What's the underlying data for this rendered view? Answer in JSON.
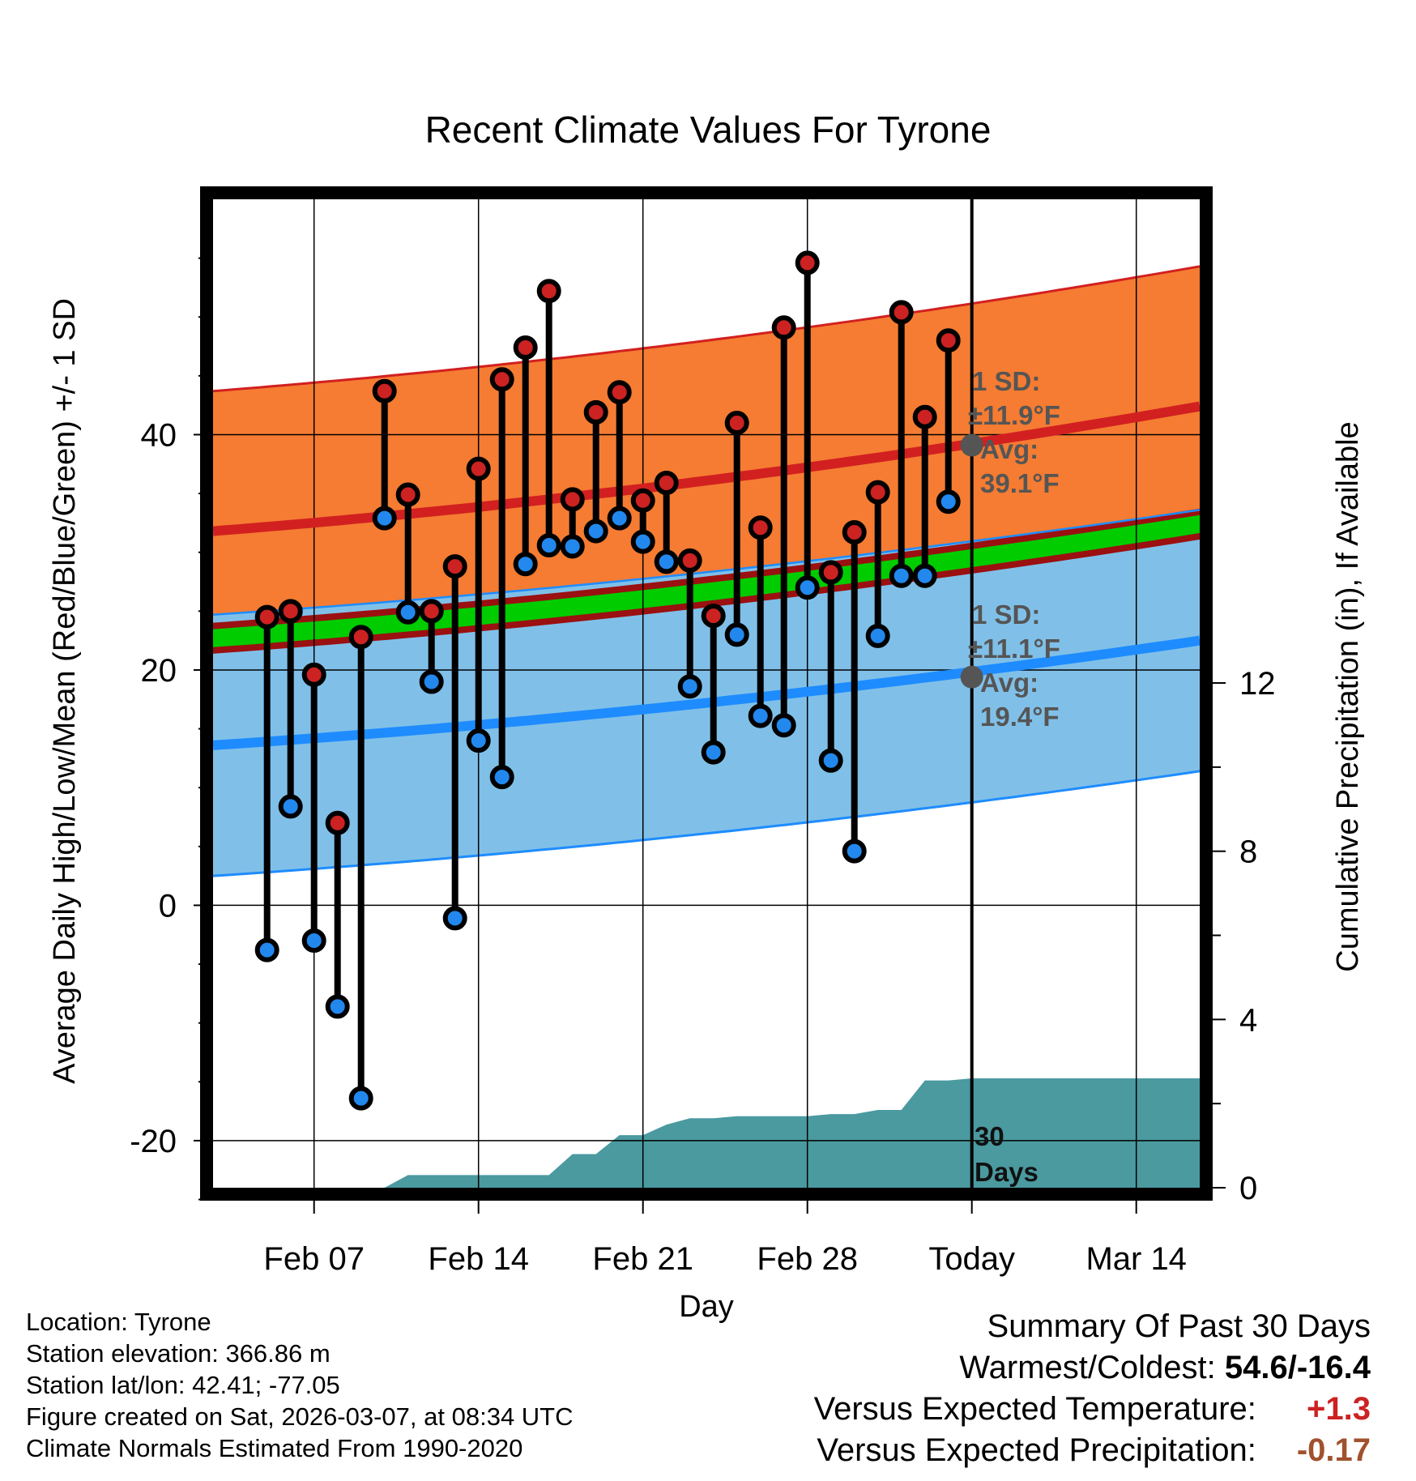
{
  "chart_data": {
    "type": "line",
    "title": "Recent Climate Values For Tyrone",
    "xlabel": "Day",
    "ylabel": "Average Daily High/Low/Mean (Red/Blue/Green) +/- 1 SD",
    "y2label": "Cumulative Precipitation (in), If Available",
    "x_range_days": [
      -32.3,
      9.7
    ],
    "ylim": [
      -24,
      60
    ],
    "y2lim": [
      0,
      23.5
    ],
    "y_ticks": [
      "-20",
      "0",
      "20",
      "40"
    ],
    "y_tick_values": [
      -20,
      0,
      20,
      40
    ],
    "y2_ticks": [
      "0",
      "4",
      "8",
      "12"
    ],
    "y2_tick_values": [
      0,
      4,
      8,
      12
    ],
    "x_ticks": [
      {
        "label": "Feb 07",
        "day": -28
      },
      {
        "label": "Feb 14",
        "day": -21
      },
      {
        "label": "Feb 21",
        "day": -14
      },
      {
        "label": "Feb 28",
        "day": -7
      },
      {
        "label": "Today",
        "day": 0
      },
      {
        "label": "Mar 14",
        "day": 7
      }
    ],
    "normal_high": {
      "start": 31.8,
      "end": 42.4,
      "sd": 11.9
    },
    "normal_low": {
      "start": 13.6,
      "end": 22.5,
      "sd": 11.1
    },
    "normal_mean": {
      "start": 22.7,
      "end": 32.4,
      "sd": 0.85
    },
    "daily": {
      "days": [
        -30,
        -29,
        -28,
        -27,
        -26,
        -25,
        -24,
        -23,
        -22,
        -21,
        -20,
        -19,
        -18,
        -17,
        -16,
        -15,
        -14,
        -13,
        -12,
        -11,
        -10,
        -9,
        -8,
        -7,
        -6,
        -5,
        -4,
        -3,
        -2,
        -1
      ],
      "highs": [
        24.5,
        25.0,
        19.6,
        7.0,
        22.8,
        43.7,
        34.9,
        25.0,
        28.8,
        37.1,
        44.7,
        47.4,
        52.2,
        34.5,
        41.9,
        43.6,
        34.4,
        35.9,
        29.3,
        24.6,
        41.0,
        32.1,
        49.1,
        54.6,
        28.3,
        31.7,
        35.1,
        50.4,
        41.5,
        48.0
      ],
      "lows": [
        -3.8,
        8.4,
        -3.0,
        -8.6,
        -16.4,
        32.9,
        24.9,
        19.0,
        -1.1,
        14.0,
        10.9,
        29.0,
        30.6,
        30.5,
        31.8,
        32.9,
        30.9,
        29.2,
        18.6,
        13.0,
        23.0,
        16.1,
        15.3,
        27.0,
        12.3,
        4.6,
        22.9,
        28.0,
        28.0,
        34.3
      ]
    },
    "cumulative_precip": {
      "days": [
        -32.3,
        -27.5,
        -27.0,
        -26.0,
        -25.0,
        -24.0,
        -23.0,
        -22.0,
        -21.0,
        -20.0,
        -19.0,
        -18.0,
        -17.0,
        -16.0,
        -15.0,
        -14.0,
        -13.0,
        -12.0,
        -11.0,
        -10.0,
        -9.0,
        -8.0,
        -7.0,
        -6.0,
        -5.0,
        -4.0,
        -3.0,
        -2.0,
        -1.0,
        0.0,
        9.7
      ],
      "values": [
        0,
        0,
        0,
        0,
        0,
        0.3,
        0.3,
        0.3,
        0.3,
        0.3,
        0.3,
        0.3,
        0.8,
        0.8,
        1.25,
        1.25,
        1.5,
        1.65,
        1.65,
        1.7,
        1.7,
        1.7,
        1.7,
        1.75,
        1.75,
        1.85,
        1.85,
        2.55,
        2.55,
        2.6,
        2.6
      ]
    },
    "annotations": {
      "high_sd": "1 SD:",
      "high_sd_value": "±11.9°F",
      "high_avg": "Avg:",
      "high_avg_value": "39.1°F",
      "high_avg_num": 39.1,
      "low_sd": "1 SD:",
      "low_sd_value": "±11.1°F",
      "low_avg": "Avg:",
      "low_avg_value": "19.4°F",
      "low_avg_num": 19.4,
      "window_line1": "30",
      "window_line2": "Days"
    },
    "colors": {
      "high_band": "#f57c32",
      "high_line": "#d22020",
      "low_band": "#80c0e8",
      "low_line": "#1e8cff",
      "mean_band": "#00cc00",
      "mean_dark": "#9b1010",
      "precip": "#4a9aa0",
      "high_dot": "#cc2222",
      "low_dot": "#2288ee",
      "avg_dot": "#555555",
      "warm_value": "#cc2222",
      "dry_value": "#a0522d"
    }
  },
  "footer": {
    "location": "Location: Tyrone",
    "elevation": "Station elevation: 366.86 m",
    "latlon": "Station lat/lon: 42.41; -77.05",
    "created": "Figure created on Sat, 2026-03-07, at 08:34 UTC",
    "normals": "Climate Normals Estimated From 1990-2020"
  },
  "summary": {
    "title": "Summary Of Past 30 Days",
    "warm_cold_label": "Warmest/Coldest:",
    "warm_cold_value": "54.6/-16.4",
    "temp_label": "Versus Expected Temperature:",
    "temp_value": "+1.3",
    "precip_label": "Versus Expected Precipitation:",
    "precip_value": "-0.17"
  }
}
